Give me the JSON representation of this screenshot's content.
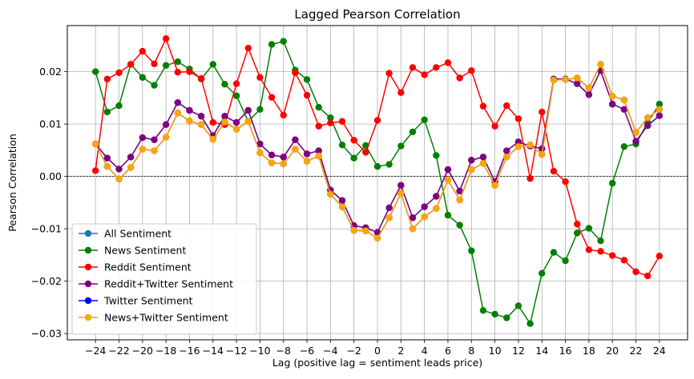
{
  "chart_data": {
    "type": "line",
    "title": "Lagged Pearson Correlation",
    "xlabel": "Lag (positive lag = sentiment leads price)",
    "ylabel": "Pearson Correlation",
    "xlim": [
      -26.4,
      26.4
    ],
    "ylim": [
      -0.0312,
      0.0288
    ],
    "xticks": [
      -24,
      -22,
      -20,
      -18,
      -16,
      -14,
      -12,
      -10,
      -8,
      -6,
      -4,
      -2,
      0,
      2,
      4,
      6,
      8,
      10,
      12,
      14,
      16,
      18,
      20,
      22,
      24
    ],
    "xtick_labels": [
      "−24",
      "−22",
      "−20",
      "−18",
      "−16",
      "−14",
      "−12",
      "−10",
      "−8",
      "−6",
      "−4",
      "−2",
      "0",
      "2",
      "4",
      "6",
      "8",
      "10",
      "12",
      "14",
      "16",
      "18",
      "20",
      "22",
      "24"
    ],
    "yticks": [
      -0.03,
      -0.02,
      -0.01,
      0.0,
      0.01,
      0.02
    ],
    "ytick_labels": [
      "−0.03",
      "−0.02",
      "−0.01",
      "0.00",
      "0.01",
      "0.02"
    ],
    "grid": true,
    "zero_line": true,
    "legend_position": "lower-left",
    "x": [
      -24,
      -23,
      -22,
      -21,
      -20,
      -19,
      -18,
      -17,
      -16,
      -15,
      -14,
      -13,
      -12,
      -11,
      -10,
      -9,
      -8,
      -7,
      -6,
      -5,
      -4,
      -3,
      -2,
      -1,
      0,
      1,
      2,
      3,
      4,
      5,
      6,
      7,
      8,
      9,
      10,
      11,
      12,
      13,
      14,
      15,
      16,
      17,
      18,
      19,
      20,
      21,
      22,
      23,
      24
    ],
    "series": [
      {
        "name": "All Sentiment",
        "color": "#1f77b4",
        "values": [
          0.0062,
          0.0035,
          0.0014,
          0.0037,
          0.0074,
          0.007,
          0.0099,
          0.0141,
          0.0126,
          0.0115,
          0.0078,
          0.0115,
          0.0103,
          0.0126,
          0.0062,
          0.0041,
          0.0037,
          0.007,
          0.0043,
          0.0049,
          -0.0026,
          -0.0046,
          -0.0094,
          -0.0098,
          -0.0107,
          -0.006,
          -0.0017,
          -0.0079,
          -0.0058,
          -0.0038,
          0.0013,
          -0.0028,
          0.0031,
          0.0037,
          -0.001,
          0.0049,
          0.0066,
          0.0058,
          0.0053,
          0.0186,
          0.0186,
          0.0177,
          0.0156,
          0.0202,
          0.0138,
          0.0128,
          0.0067,
          0.0097,
          0.0116
        ]
      },
      {
        "name": "News Sentiment",
        "color": "#008000",
        "values": [
          0.02,
          0.0123,
          0.0135,
          0.0214,
          0.0189,
          0.0174,
          0.0212,
          0.0219,
          0.0205,
          0.0186,
          0.0214,
          0.0176,
          0.0154,
          0.0105,
          0.0128,
          0.0252,
          0.0258,
          0.0203,
          0.0185,
          0.0132,
          0.0112,
          0.006,
          0.0035,
          0.0059,
          0.0019,
          0.0023,
          0.0058,
          0.0085,
          0.0108,
          0.004,
          -0.0074,
          -0.0093,
          -0.0142,
          -0.0256,
          -0.0263,
          -0.027,
          -0.0247,
          -0.0281,
          -0.0185,
          -0.0145,
          -0.0161,
          -0.0108,
          -0.0099,
          -0.0123,
          -0.0013,
          0.0057,
          0.0062,
          0.0103,
          0.0138
        ]
      },
      {
        "name": "Reddit Sentiment",
        "color": "#ff0000",
        "values": [
          0.0011,
          0.0186,
          0.0198,
          0.0214,
          0.0239,
          0.0215,
          0.0263,
          0.0199,
          0.02,
          0.0187,
          0.0103,
          0.0099,
          0.0177,
          0.0245,
          0.0189,
          0.0151,
          0.0117,
          0.0198,
          0.0155,
          0.0096,
          0.0102,
          0.0105,
          0.0069,
          0.0046,
          0.0107,
          0.0197,
          0.016,
          0.0208,
          0.0194,
          0.0208,
          0.0217,
          0.0188,
          0.0202,
          0.0134,
          0.0096,
          0.0135,
          0.011,
          -0.0004,
          0.0123,
          0.001,
          -0.001,
          -0.0091,
          -0.014,
          -0.0143,
          -0.0151,
          -0.016,
          -0.0182,
          -0.019,
          -0.0152
        ]
      },
      {
        "name": "Reddit+Twitter Sentiment",
        "color": "#800080",
        "values": [
          0.0062,
          0.0035,
          0.0014,
          0.0037,
          0.0074,
          0.007,
          0.0099,
          0.0141,
          0.0126,
          0.0115,
          0.0078,
          0.0115,
          0.0103,
          0.0126,
          0.0062,
          0.0041,
          0.0037,
          0.007,
          0.0043,
          0.0049,
          -0.0026,
          -0.0046,
          -0.0094,
          -0.0098,
          -0.0107,
          -0.006,
          -0.0017,
          -0.0079,
          -0.0058,
          -0.0038,
          0.0013,
          -0.0028,
          0.0031,
          0.0037,
          -0.001,
          0.0049,
          0.0066,
          0.0058,
          0.0053,
          0.0186,
          0.0186,
          0.0177,
          0.0156,
          0.0202,
          0.0138,
          0.0128,
          0.0067,
          0.0097,
          0.0116
        ]
      },
      {
        "name": "Twitter Sentiment",
        "color": "#0000ff",
        "values": [
          0.0062,
          0.0019,
          -0.0005,
          0.0017,
          0.0052,
          0.0049,
          0.0075,
          0.0121,
          0.0106,
          0.0099,
          0.0071,
          0.0104,
          0.009,
          0.0105,
          0.0045,
          0.0026,
          0.0024,
          0.0052,
          0.0029,
          0.0039,
          -0.0034,
          -0.0058,
          -0.0103,
          -0.0104,
          -0.0118,
          -0.0079,
          -0.0032,
          -0.01,
          -0.0077,
          -0.0061,
          -0.0007,
          -0.0045,
          0.0013,
          0.0025,
          -0.0017,
          0.0037,
          0.0057,
          0.006,
          0.0042,
          0.0184,
          0.0185,
          0.0188,
          0.0169,
          0.0214,
          0.0153,
          0.0146,
          0.0084,
          0.0112,
          0.0128
        ]
      },
      {
        "name": "News+Twitter Sentiment",
        "color": "#ffa500",
        "values": [
          0.0062,
          0.0019,
          -0.0005,
          0.0017,
          0.0052,
          0.0049,
          0.0075,
          0.0121,
          0.0106,
          0.0099,
          0.0071,
          0.0104,
          0.009,
          0.0105,
          0.0045,
          0.0026,
          0.0024,
          0.0052,
          0.0029,
          0.0039,
          -0.0034,
          -0.0058,
          -0.0103,
          -0.0104,
          -0.0118,
          -0.0079,
          -0.0032,
          -0.01,
          -0.0077,
          -0.0061,
          -0.0007,
          -0.0045,
          0.0013,
          0.0025,
          -0.0017,
          0.0037,
          0.0057,
          0.006,
          0.0042,
          0.0184,
          0.0185,
          0.0188,
          0.0169,
          0.0214,
          0.0153,
          0.0146,
          0.0084,
          0.0112,
          0.0128
        ]
      }
    ]
  }
}
